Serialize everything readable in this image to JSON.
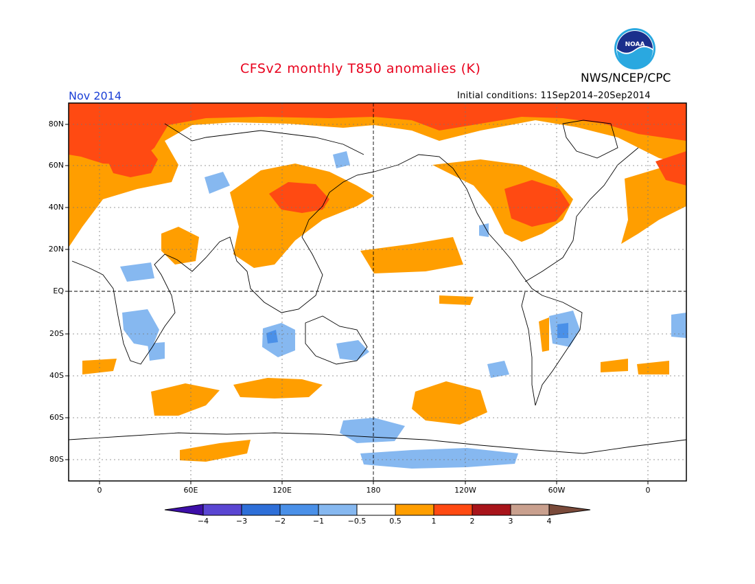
{
  "header": {
    "title": "CFSv2 monthly T850 anomalies (K)",
    "agency": "NWS/NCEP/CPC",
    "month": "Nov 2014",
    "initial_conditions": "Initial conditions: 11Sep2014–20Sep2014",
    "logo_text": "NOAA"
  },
  "map": {
    "lat_labels": [
      "80N",
      "60N",
      "40N",
      "20N",
      "EQ",
      "20S",
      "40S",
      "60S",
      "80S"
    ],
    "lon_labels": [
      "0",
      "60E",
      "120E",
      "180",
      "120W",
      "60W",
      "0"
    ]
  },
  "colorbar": {
    "labels": [
      "−4",
      "−3",
      "−2",
      "−1",
      "−0.5",
      "0.5",
      "1",
      "2",
      "3",
      "4"
    ],
    "colors": [
      "#3d0fa8",
      "#5a46d2",
      "#2e6fd8",
      "#4a90e8",
      "#86b8f0",
      "#ffffff",
      "#ff9e00",
      "#ff4a12",
      "#a8141a",
      "#c9a08e",
      "#7a4a3a"
    ]
  }
}
